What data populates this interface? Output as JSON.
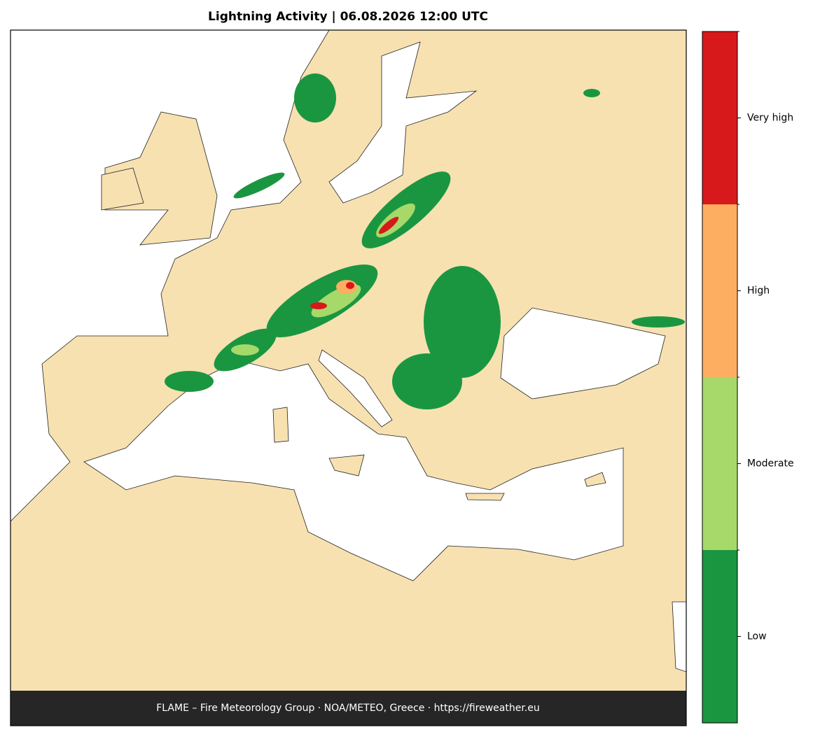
{
  "header": {
    "title": "Lightning Activity  |  06.08.2026 12:00 UTC"
  },
  "legend": {
    "items": [
      {
        "label": "Low",
        "color": "#1a9641"
      },
      {
        "label": "Moderate",
        "color": "#a6d96a"
      },
      {
        "label": "High",
        "color": "#fdae61"
      },
      {
        "label": "Very high",
        "color": "#d7191c"
      }
    ]
  },
  "footer": {
    "text": "FLAME – Fire Meteorology Group · NOA/METEO, Greece · https://fireweather.eu"
  }
}
